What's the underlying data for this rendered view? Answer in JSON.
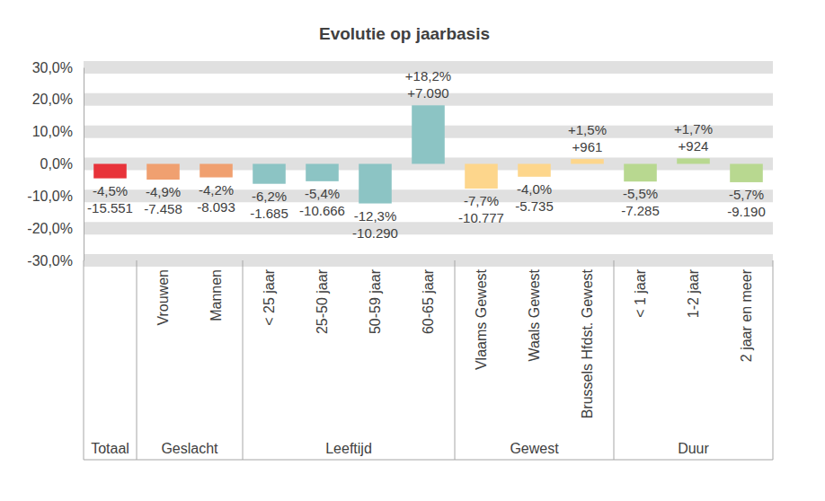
{
  "chart_data": {
    "type": "bar",
    "title": "Evolutie op jaarbasis",
    "categories": [
      null,
      "Vrouwen",
      "Mannen",
      "< 25 jaar",
      "25-50 jaar",
      "50-59 jaar",
      "60-65 jaar",
      "Vlaams Gewest",
      "Waals Gewest",
      "Brussels Hfdst. Gewest",
      "< 1 jaar",
      "1-2 jaar",
      "2 jaar en meer"
    ],
    "groups": [
      "Totaal",
      "Geslacht",
      "Geslacht",
      "Leeftijd",
      "Leeftijd",
      "Leeftijd",
      "Leeftijd",
      "Gewest",
      "Gewest",
      "Gewest",
      "Duur",
      "Duur",
      "Duur"
    ],
    "values": [
      -4.5,
      -4.9,
      -4.2,
      -6.2,
      -5.4,
      -12.3,
      18.2,
      -7.7,
      -4.0,
      1.5,
      -5.5,
      1.7,
      -5.7
    ],
    "value_labels": [
      "-4,5%",
      "-4,9%",
      "-4,2%",
      "-6,2%",
      "-5,4%",
      "-12,3%",
      "+18,2%",
      "-7,7%",
      "-4,0%",
      "+1,5%",
      "-5,5%",
      "+1,7%",
      "-5,7%"
    ],
    "counts": [
      -15551,
      -7458,
      -8093,
      -1685,
      -10666,
      -10290,
      7090,
      -10777,
      -5735,
      961,
      -7285,
      924,
      -9190
    ],
    "count_labels": [
      "-15.551",
      "-7.458",
      "-8.093",
      "-1.685",
      "-10.666",
      "-10.290",
      "+7.090",
      "-10.777",
      "-5.735",
      "+961",
      "-7.285",
      "+924",
      "-9.190"
    ],
    "colors": [
      "#e8333a",
      "#f0a070",
      "#f0a070",
      "#8cc4c4",
      "#8cc4c4",
      "#8cc4c4",
      "#8cc4c4",
      "#fdd68c",
      "#fdd68c",
      "#fdd68c",
      "#b8d890",
      "#b8d890",
      "#b8d890"
    ],
    "ylim": [
      -30,
      30
    ],
    "yticks": [
      {
        "value": -30,
        "label": "-30,0%"
      },
      {
        "value": -20,
        "label": "-20,0%"
      },
      {
        "value": -10,
        "label": "-10,0%"
      },
      {
        "value": 0,
        "label": "0,0%"
      },
      {
        "value": 10,
        "label": "10,0%"
      },
      {
        "value": 20,
        "label": "20,0%"
      },
      {
        "value": 30,
        "label": "30,0%"
      }
    ],
    "grid": true,
    "data_labels": true
  }
}
